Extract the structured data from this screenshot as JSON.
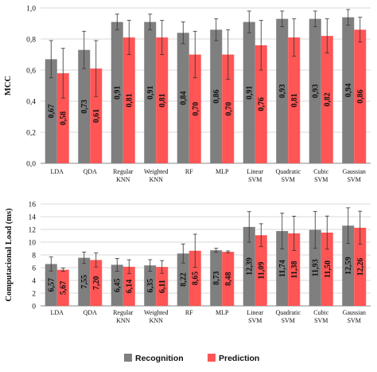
{
  "colors": {
    "recognition": "#7f7f7f",
    "prediction": "#ff5555",
    "grid": "#d9d9d9",
    "axis": "#888888",
    "error": "#333333"
  },
  "legend": {
    "position": "bottom",
    "items": [
      "Recognition",
      "Prediction"
    ]
  },
  "chart_data": [
    {
      "type": "bar",
      "ylabel": "MCC",
      "ylim": [
        0,
        1
      ],
      "yticks": [
        "0,0",
        "0,2",
        "0,4",
        "0,6",
        "0,8",
        "1,0"
      ],
      "ytick_values": [
        0,
        0.2,
        0.4,
        0.6,
        0.8,
        1.0
      ],
      "grid": true,
      "categories": [
        [
          "LDA"
        ],
        [
          "QDA"
        ],
        [
          "Regular",
          "KNN"
        ],
        [
          "Weighted",
          "KNN"
        ],
        [
          "RF"
        ],
        [
          "MLP"
        ],
        [
          "Linear",
          "SVM"
        ],
        [
          "Quadratic",
          "SVM"
        ],
        [
          "Cubic",
          "SVM"
        ],
        [
          "Gaussian",
          "SVM"
        ]
      ],
      "series": [
        {
          "name": "Recognition",
          "values": [
            0.67,
            0.73,
            0.91,
            0.91,
            0.84,
            0.86,
            0.91,
            0.93,
            0.93,
            0.94
          ],
          "errors": [
            0.12,
            0.12,
            0.05,
            0.05,
            0.07,
            0.07,
            0.07,
            0.05,
            0.05,
            0.05
          ],
          "labels": [
            "0,67",
            "0,73",
            "0,91",
            "0,91",
            "0,84",
            "0,86",
            "0,91",
            "0,93",
            "0,93",
            "0,94"
          ]
        },
        {
          "name": "Prediction",
          "values": [
            0.58,
            0.61,
            0.81,
            0.81,
            0.7,
            0.7,
            0.76,
            0.81,
            0.82,
            0.86
          ],
          "errors": [
            0.16,
            0.18,
            0.11,
            0.11,
            0.15,
            0.16,
            0.16,
            0.12,
            0.11,
            0.08
          ],
          "labels": [
            "0,58",
            "0,61",
            "0,81",
            "0,81",
            "0,70",
            "0,70",
            "0,76",
            "0,81",
            "0,82",
            "0,86"
          ]
        }
      ]
    },
    {
      "type": "bar",
      "ylabel": "Computacional Load (ms)",
      "ylim": [
        0,
        16
      ],
      "yticks": [
        "0",
        "2",
        "4",
        "6",
        "8",
        "10",
        "12",
        "14",
        "16"
      ],
      "ytick_values": [
        0,
        2,
        4,
        6,
        8,
        10,
        12,
        14,
        16
      ],
      "grid": true,
      "categories": [
        [
          "LDA"
        ],
        [
          "QDA"
        ],
        [
          "Regular",
          "KNN"
        ],
        [
          "Weighted",
          "KNN"
        ],
        [
          "RF"
        ],
        [
          "MLP"
        ],
        [
          "Linear",
          "SVM"
        ],
        [
          "Quadratic",
          "SVM"
        ],
        [
          "Cubic",
          "SVM"
        ],
        [
          "Gaussian",
          "SVM"
        ]
      ],
      "series": [
        {
          "name": "Recognition",
          "values": [
            6.57,
            7.55,
            6.45,
            6.35,
            8.22,
            8.73,
            12.39,
            11.74,
            11.93,
            12.59
          ],
          "errors": [
            1.1,
            0.9,
            1.0,
            0.9,
            1.5,
            0.3,
            2.4,
            2.8,
            2.9,
            2.8
          ],
          "labels": [
            "6,57",
            "7,55",
            "6,45",
            "6,35",
            "8,22",
            "8,73",
            "12,39",
            "11,74",
            "11,93",
            "12,59"
          ]
        },
        {
          "name": "Prediction",
          "values": [
            5.67,
            7.2,
            6.14,
            6.11,
            8.65,
            8.48,
            11.09,
            11.38,
            11.5,
            12.26
          ],
          "errors": [
            0.25,
            1.1,
            1.1,
            1.0,
            2.6,
            0.15,
            1.8,
            2.7,
            2.6,
            2.6
          ],
          "labels": [
            "5,67",
            "7,20",
            "6,14",
            "6,11",
            "8,65",
            "8,48",
            "11,09",
            "11,38",
            "11,50",
            "12,26"
          ]
        }
      ]
    }
  ]
}
